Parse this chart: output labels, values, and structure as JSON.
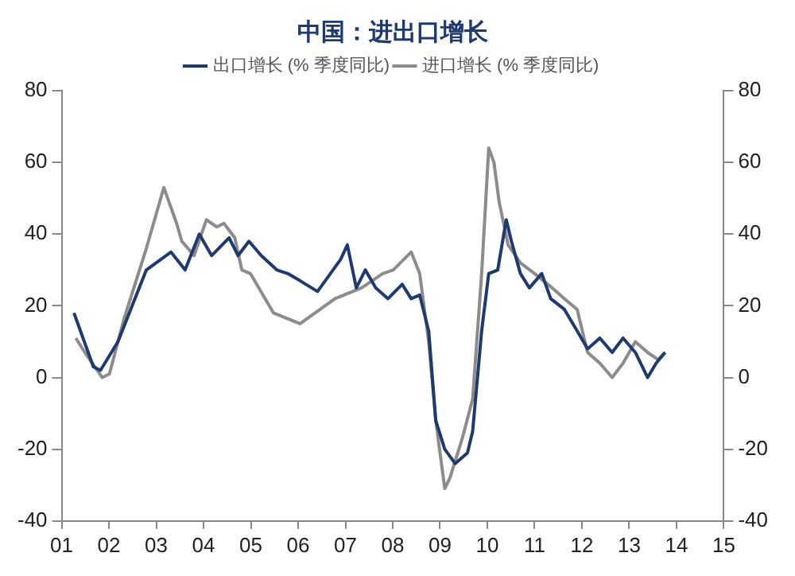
{
  "chart_data": {
    "type": "line",
    "title": "中国：进出口增长",
    "legend": "top",
    "series": [
      {
        "name": "出口增长 (% 季度同比)",
        "color": "#1f3a6e",
        "x": [
          2001.26,
          2001.67,
          2001.82,
          2002.19,
          2002.79,
          2003.31,
          2003.61,
          2003.91,
          2004.17,
          2004.54,
          2004.73,
          2004.96,
          2005.22,
          2005.55,
          2005.78,
          2006.04,
          2006.41,
          2006.9,
          2007.04,
          2007.23,
          2007.42,
          2007.64,
          2007.9,
          2008.2,
          2008.39,
          2008.57,
          2008.76,
          2008.91,
          2009.1,
          2009.32,
          2009.58,
          2009.69,
          2009.88,
          2010.03,
          2010.22,
          2010.4,
          2010.51,
          2010.7,
          2010.89,
          2011.15,
          2011.34,
          2011.63,
          2011.9,
          2012.12,
          2012.38,
          2012.64,
          2012.87,
          2013.13,
          2013.39,
          2013.57,
          2013.76
        ],
        "values": [
          18,
          3,
          2,
          10,
          30,
          35,
          30,
          40,
          34,
          39,
          34,
          38,
          34,
          30,
          29,
          27,
          24,
          33,
          37,
          25,
          30,
          25,
          22,
          26,
          22,
          23,
          13,
          -12,
          -20,
          -24,
          -21,
          -15,
          13,
          29,
          30,
          44,
          38,
          29,
          25,
          29,
          22,
          19,
          13,
          8,
          11,
          7,
          11,
          7,
          0,
          4,
          7
        ]
      },
      {
        "name": "进口增长 (% 季度同比)",
        "color": "#8c8c8c",
        "x": [
          2001.3,
          2001.49,
          2001.86,
          2002.01,
          2002.31,
          2002.79,
          2003.16,
          2003.43,
          2003.54,
          2003.8,
          2004.06,
          2004.28,
          2004.43,
          2004.66,
          2004.81,
          2004.99,
          2005.48,
          2006.04,
          2006.78,
          2007.34,
          2007.79,
          2008.01,
          2008.39,
          2008.57,
          2008.76,
          2008.91,
          2009.1,
          2009.21,
          2009.47,
          2009.69,
          2009.88,
          2010.03,
          2010.14,
          2010.25,
          2010.44,
          2010.7,
          2011.0,
          2011.37,
          2011.63,
          2011.9,
          2012.12,
          2012.38,
          2012.64,
          2012.87,
          2013.13,
          2013.39,
          2013.61,
          2013.76
        ],
        "values": [
          11,
          7,
          0,
          1,
          16,
          36,
          53,
          43,
          38,
          34,
          44,
          42,
          43,
          39,
          30,
          29,
          18,
          15,
          22,
          25,
          29,
          30,
          35,
          29,
          10,
          -12,
          -31,
          -28,
          -17,
          -6,
          29,
          64,
          60,
          49,
          37,
          32,
          29,
          25,
          22,
          19,
          7,
          4,
          0,
          4,
          10,
          7,
          5,
          7
        ]
      }
    ],
    "xlim": [
      2001,
      2015
    ],
    "xticks": [
      {
        "value": 2001,
        "label": "01"
      },
      {
        "value": 2002,
        "label": "02"
      },
      {
        "value": 2003,
        "label": "03"
      },
      {
        "value": 2004,
        "label": "04"
      },
      {
        "value": 2005,
        "label": "05"
      },
      {
        "value": 2006,
        "label": "06"
      },
      {
        "value": 2007,
        "label": "07"
      },
      {
        "value": 2008,
        "label": "08"
      },
      {
        "value": 2009,
        "label": "09"
      },
      {
        "value": 2010,
        "label": "10"
      },
      {
        "value": 2011,
        "label": "11"
      },
      {
        "value": 2012,
        "label": "12"
      },
      {
        "value": 2013,
        "label": "13"
      },
      {
        "value": 2014,
        "label": "14"
      },
      {
        "value": 2015,
        "label": "15"
      }
    ],
    "ylim": [
      -40,
      80
    ],
    "yticks": [
      -40,
      -20,
      0,
      20,
      40,
      60,
      80
    ],
    "y2lim": [
      -40,
      80
    ],
    "y2ticks": [
      -40,
      -20,
      0,
      20,
      40,
      60,
      80
    ],
    "grid": false,
    "marker": "none",
    "line_style": "solid"
  }
}
